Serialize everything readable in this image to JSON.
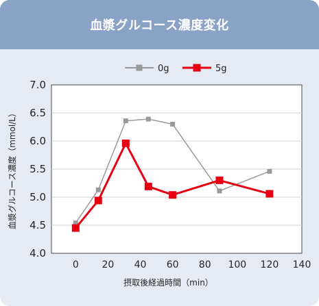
{
  "header": {
    "title": "血漿グルコース濃度変化"
  },
  "chart_data": {
    "type": "line",
    "title": "血漿グルコース濃度変化",
    "xlabel": "摂取後経過時間（min）",
    "ylabel": "血漿グルコース濃度（mmol/L）",
    "xlim": [
      -15,
      140
    ],
    "ylim": [
      4.0,
      7.0
    ],
    "xticks": [
      0,
      20,
      40,
      60,
      80,
      100,
      120,
      140
    ],
    "yticks": [
      4.0,
      4.5,
      5.0,
      5.5,
      6.0,
      6.5,
      7.0
    ],
    "xtick_labels": [
      "0",
      "20",
      "40",
      "60",
      "80",
      "100",
      "120",
      "140"
    ],
    "ytick_labels": [
      "4.0",
      "4.5",
      "5.0",
      "5.5",
      "6.0",
      "6.5",
      "7.0"
    ],
    "grid": "horizontal",
    "legend_position": "top",
    "series": [
      {
        "name": "0g",
        "color": "#999999",
        "points": [
          {
            "x": 0,
            "y": 4.54
          },
          {
            "x": 14,
            "y": 5.13
          },
          {
            "x": 31,
            "y": 6.36
          },
          {
            "x": 45,
            "y": 6.39
          },
          {
            "x": 60,
            "y": 6.3
          },
          {
            "x": 89,
            "y": 5.11
          },
          {
            "x": 120,
            "y": 5.46
          }
        ]
      },
      {
        "name": "5g",
        "color": "#e60012",
        "points": [
          {
            "x": 0,
            "y": 4.45
          },
          {
            "x": 14,
            "y": 4.94
          },
          {
            "x": 31,
            "y": 5.96
          },
          {
            "x": 45,
            "y": 5.19
          },
          {
            "x": 60,
            "y": 5.04
          },
          {
            "x": 89,
            "y": 5.3
          },
          {
            "x": 120,
            "y": 5.06
          }
        ]
      }
    ]
  }
}
